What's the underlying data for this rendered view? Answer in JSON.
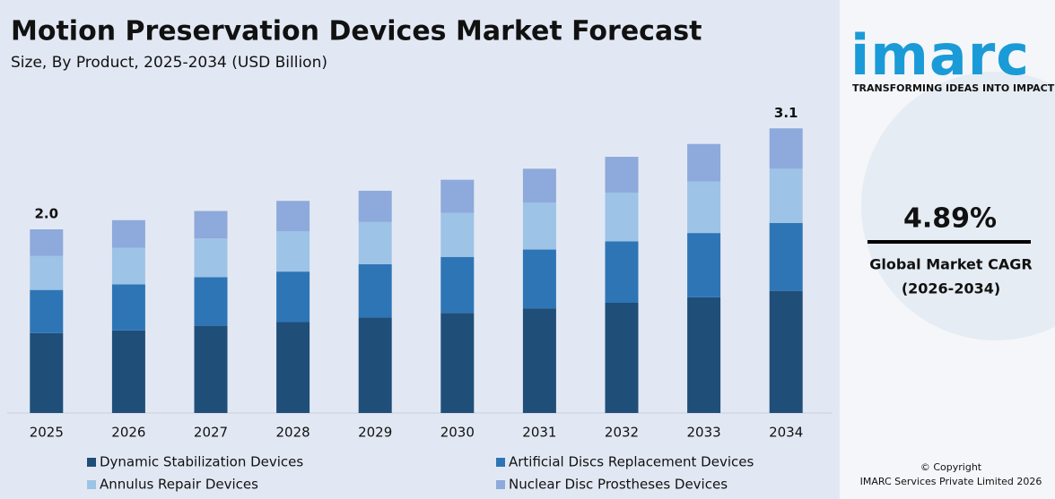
{
  "chart_data": {
    "type": "stacked-bar",
    "title": "Motion Preservation Devices Market Forecast",
    "subtitle": "Size, By Product, 2025-2034 (USD Billion)",
    "categories": [
      "2025",
      "2026",
      "2027",
      "2028",
      "2029",
      "2030",
      "2031",
      "2032",
      "2033",
      "2034"
    ],
    "series": [
      {
        "name": "Dynamic Stabilization Devices",
        "color": "#1f4e79",
        "values": [
          0.87,
          0.9,
          0.95,
          0.99,
          1.04,
          1.09,
          1.14,
          1.2,
          1.26,
          1.33
        ]
      },
      {
        "name": "Artificial Discs Replacement Devices",
        "color": "#2e75b6",
        "values": [
          0.47,
          0.5,
          0.53,
          0.55,
          0.58,
          0.61,
          0.64,
          0.67,
          0.7,
          0.74
        ]
      },
      {
        "name": "Annulus Repair Devices",
        "color": "#9dc3e6",
        "values": [
          0.37,
          0.4,
          0.42,
          0.44,
          0.46,
          0.48,
          0.51,
          0.53,
          0.56,
          0.59
        ]
      },
      {
        "name": "Nuclear Disc Prostheses Devices",
        "color": "#8ea9db",
        "values": [
          0.29,
          0.3,
          0.3,
          0.33,
          0.34,
          0.36,
          0.37,
          0.39,
          0.41,
          0.44
        ]
      }
    ],
    "totals": [
      {
        "category": "2025",
        "value": 2.0,
        "label": "2.0"
      },
      {
        "category": "2034",
        "value": 3.1,
        "label": "3.1"
      }
    ],
    "ylim": [
      0,
      3.2
    ]
  },
  "sidebar": {
    "logo": "imarc",
    "tagline": "TRANSFORMING IDEAS INTO IMPACT",
    "cagr": "4.89%",
    "cagr_label": "Global Market CAGR",
    "cagr_period": "(2026-2034)",
    "copyright": "© Copyright",
    "company": "IMARC Services Private Limited 2026"
  }
}
